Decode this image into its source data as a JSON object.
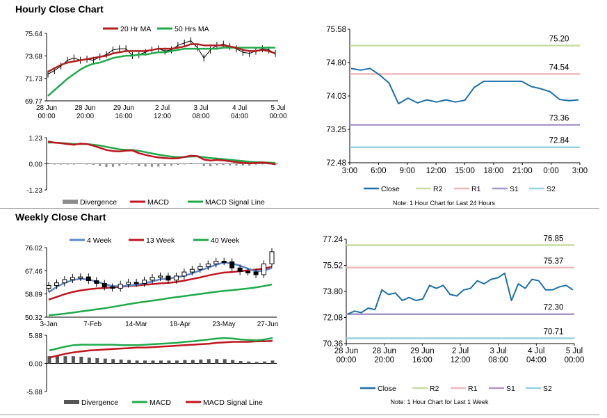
{
  "sections": {
    "hourly_title": "Hourly Close Chart",
    "weekly_title": "Weekly Close Chart"
  },
  "colors": {
    "ma20": "#b01e1e",
    "ma50": "#1eaa4a",
    "wk4": "#5b86c8",
    "wk13": "#c0141e",
    "wk40": "#1eaa4a",
    "close": "#1c6fa8",
    "r2": "#c8dca0",
    "r1": "#eeb9b9",
    "s1": "#a996c8",
    "s2": "#96d2dc",
    "divergence": "#8c8c8c",
    "macd_line": "#c0141e",
    "signal_line": "#1eaa4a"
  },
  "chart_data": [
    {
      "id": "hourly-price",
      "type": "line",
      "title": "",
      "ylim": [
        69.77,
        75.64
      ],
      "yticks": [
        "75.64",
        "73.68",
        "71.73",
        "69.77"
      ],
      "xticks": [
        "28 Jun\n00:00",
        "28 Jun\n20:00",
        "29 Jun\n16:00",
        "2 Jul\n12:00",
        "3 Jul\n08:00",
        "4 Jul\n04:00",
        "5 Jul\n00:00"
      ],
      "legend": [
        "20 Hr MA",
        "50 Hrs MA"
      ],
      "price_path": [
        72.1,
        72.4,
        72.8,
        73.3,
        73.5,
        73.3,
        73.4,
        73.3,
        73.6,
        73.8,
        74.2,
        74.3,
        74.3,
        73.7,
        73.8,
        74.0,
        74.2,
        74.3,
        74.1,
        74.2,
        74.6,
        74.8,
        75.0,
        74.4,
        73.5,
        74.2,
        74.6,
        74.7,
        74.5,
        74.3,
        74.0,
        73.9,
        74.1,
        74.3,
        74.2,
        73.9
      ],
      "ma20": [
        72.3,
        72.6,
        72.9,
        73.1,
        73.2,
        73.3,
        73.4,
        73.5,
        73.6,
        73.7,
        73.9,
        74.0,
        74.1,
        74.1,
        74.1,
        74.1,
        74.2,
        74.3,
        74.3,
        74.3,
        74.4,
        74.5,
        74.7,
        74.7,
        74.6,
        74.6,
        74.6,
        74.6,
        74.5,
        74.4,
        74.2,
        74.1,
        74.1,
        74.2,
        74.1,
        73.9
      ],
      "ma50": [
        70.2,
        70.7,
        71.2,
        71.7,
        72.1,
        72.5,
        72.8,
        73.0,
        73.1,
        73.3,
        73.5,
        73.6,
        73.7,
        73.7,
        73.8,
        73.8,
        73.9,
        74.0,
        74.0,
        74.1,
        74.2,
        74.3,
        74.3,
        74.3,
        74.3,
        74.3,
        74.3,
        74.4,
        74.4,
        74.4,
        74.4,
        74.4,
        74.4,
        74.4,
        74.4,
        74.4
      ]
    },
    {
      "id": "hourly-macd",
      "type": "line",
      "ylim": [
        -1.23,
        1.23
      ],
      "yticks": [
        "1.23",
        "0.00",
        "-1.23"
      ],
      "legend": [
        "Divergence",
        "MACD",
        "MACD Signal Line"
      ],
      "macd": [
        1.05,
        1.0,
        0.97,
        0.93,
        0.9,
        0.95,
        0.93,
        0.85,
        0.75,
        0.65,
        0.6,
        0.58,
        0.62,
        0.63,
        0.5,
        0.42,
        0.35,
        0.3,
        0.27,
        0.25,
        0.26,
        0.32,
        0.38,
        0.36,
        0.2,
        0.15,
        0.18,
        0.16,
        0.12,
        0.08,
        0.05,
        0.02,
        0.04,
        0.06,
        0.03,
        -0.02
      ],
      "signal": [
        1.0,
        1.0,
        0.98,
        0.96,
        0.93,
        0.93,
        0.93,
        0.9,
        0.86,
        0.8,
        0.74,
        0.68,
        0.66,
        0.65,
        0.61,
        0.55,
        0.49,
        0.43,
        0.38,
        0.34,
        0.31,
        0.32,
        0.34,
        0.35,
        0.31,
        0.27,
        0.25,
        0.22,
        0.19,
        0.16,
        0.13,
        0.1,
        0.08,
        0.07,
        0.06,
        0.04
      ]
    },
    {
      "id": "daily-levels",
      "type": "line",
      "ylim": [
        72.48,
        75.58
      ],
      "yticks": [
        "75.58",
        "74.80",
        "74.03",
        "73.25",
        "72.48"
      ],
      "xticks": [
        "3:00",
        "6:00",
        "9:00",
        "12:00",
        "15:00",
        "18:00",
        "21:00",
        "0:00",
        "3:00"
      ],
      "close": [
        74.67,
        74.63,
        74.67,
        74.52,
        74.33,
        73.85,
        73.98,
        73.87,
        73.94,
        73.89,
        73.94,
        73.89,
        73.93,
        74.23,
        74.37,
        74.37,
        74.37,
        74.37,
        74.37,
        74.25,
        74.2,
        74.13,
        73.95,
        73.92,
        73.94
      ],
      "levels": [
        {
          "name": "R2",
          "value": 75.2,
          "label": "75.20"
        },
        {
          "name": "R1",
          "value": 74.54,
          "label": "74.54"
        },
        {
          "name": "S1",
          "value": 73.36,
          "label": "73.36"
        },
        {
          "name": "S2",
          "value": 72.84,
          "label": "72.84"
        }
      ],
      "legend": [
        "Close",
        "R2",
        "R1",
        "S1",
        "S2"
      ],
      "note": "Note: 1 Hour Chart for Last 24 Hours"
    },
    {
      "id": "weekly-price",
      "type": "line",
      "ylim": [
        50.32,
        76.02
      ],
      "yticks": [
        "76.02",
        "67.46",
        "58.89",
        "50.32"
      ],
      "xticks": [
        "3-Jan",
        "7-Feb",
        "14-Mar",
        "18-Apr",
        "23-May",
        "27-Jun"
      ],
      "legend": [
        "4 Week",
        "13 Week",
        "40 Week"
      ],
      "weekly_close": [
        62.0,
        63.0,
        64.2,
        65.0,
        65.2,
        63.8,
        62.8,
        61.5,
        61.0,
        62.5,
        63.2,
        62.8,
        64.0,
        65.0,
        65.5,
        64.0,
        65.5,
        67.0,
        68.0,
        69.0,
        70.0,
        71.0,
        70.8,
        68.5,
        67.2,
        67.0,
        66.0,
        70.0,
        74.5
      ],
      "wk4": [
        59.5,
        61.5,
        63.0,
        64.0,
        64.5,
        64.2,
        63.5,
        62.5,
        61.8,
        61.7,
        62.0,
        62.3,
        62.8,
        63.5,
        64.3,
        64.6,
        65.0,
        65.6,
        66.5,
        67.6,
        68.6,
        69.7,
        70.5,
        70.2,
        69.3,
        68.3,
        67.2,
        67.5,
        68.5
      ],
      "wk13": [
        56.8,
        57.8,
        58.8,
        59.6,
        60.2,
        60.6,
        60.9,
        61.1,
        61.3,
        61.5,
        61.8,
        62.0,
        62.3,
        62.5,
        62.8,
        63.0,
        63.3,
        63.8,
        64.4,
        65.0,
        65.7,
        66.3,
        66.8,
        67.0,
        67.3,
        67.6,
        67.9,
        68.3,
        68.9
      ],
      "wk40": [
        51.0,
        51.3,
        51.6,
        52.0,
        52.4,
        52.8,
        53.2,
        53.6,
        54.1,
        54.6,
        55.1,
        55.6,
        56.0,
        56.4,
        56.8,
        57.3,
        57.7,
        58.1,
        58.5,
        58.9,
        59.3,
        59.7,
        60.0,
        60.3,
        60.6,
        60.9,
        61.3,
        61.8,
        62.4
      ]
    },
    {
      "id": "weekly-macd",
      "type": "line",
      "ylim": [
        -5.88,
        5.88
      ],
      "yticks": [
        "5.88",
        "0.00",
        "-5.88"
      ],
      "legend": [
        "Divergence",
        "MACD",
        "MACD Signal Line"
      ],
      "macd": [
        2.7,
        3.1,
        3.5,
        3.8,
        3.9,
        3.9,
        3.9,
        3.9,
        3.9,
        3.8,
        3.8,
        3.8,
        3.9,
        4.0,
        4.1,
        4.2,
        4.3,
        4.5,
        4.6,
        4.8,
        5.0,
        5.2,
        5.3,
        5.2,
        5.0,
        4.9,
        4.8,
        5.0,
        5.3
      ],
      "signal": [
        1.2,
        1.6,
        2.0,
        2.3,
        2.5,
        2.7,
        2.8,
        2.9,
        3.0,
        3.1,
        3.2,
        3.3,
        3.3,
        3.4,
        3.5,
        3.6,
        3.7,
        3.8,
        3.9,
        4.0,
        4.1,
        4.3,
        4.4,
        4.5,
        4.5,
        4.5,
        4.6,
        4.6,
        4.7
      ],
      "divergence": [
        1.5,
        1.5,
        1.5,
        1.5,
        1.4,
        1.2,
        1.1,
        1.0,
        0.9,
        0.8,
        0.7,
        0.6,
        0.6,
        0.6,
        0.6,
        0.6,
        0.6,
        0.7,
        0.7,
        0.8,
        0.9,
        0.9,
        0.9,
        0.7,
        0.5,
        0.4,
        0.3,
        0.4,
        0.6
      ]
    },
    {
      "id": "weekly-levels",
      "type": "line",
      "ylim": [
        70.36,
        77.24
      ],
      "yticks": [
        "77.24",
        "75.52",
        "73.80",
        "72.08",
        "70.36"
      ],
      "xticks": [
        "28 Jun\n00:00",
        "28 Jun\n20:00",
        "29 Jun\n16:00",
        "2 Jul\n12:00",
        "3 Jul\n08:00",
        "4 Jul\n04:00",
        "5 Jul\n00:00"
      ],
      "close_path": [
        72.3,
        72.5,
        72.4,
        72.7,
        72.6,
        73.9,
        73.6,
        73.7,
        73.2,
        73.4,
        73.2,
        73.3,
        74.2,
        74.0,
        74.2,
        73.6,
        73.5,
        73.9,
        74.0,
        74.5,
        74.3,
        74.6,
        74.7,
        75.0,
        73.2,
        74.3,
        74.0,
        74.6,
        74.5,
        73.9,
        73.9,
        74.1,
        74.2,
        73.9
      ],
      "levels": [
        {
          "name": "R2",
          "value": 76.85,
          "label": "76.85"
        },
        {
          "name": "R1",
          "value": 75.37,
          "label": "75.37"
        },
        {
          "name": "S1",
          "value": 72.3,
          "label": "72.30"
        },
        {
          "name": "S2",
          "value": 70.71,
          "label": "70.71"
        }
      ],
      "legend": [
        "Close",
        "R2",
        "R1",
        "S1",
        "S2"
      ],
      "note": "Note: 1 Hour Chart for Last 1 Week"
    }
  ]
}
